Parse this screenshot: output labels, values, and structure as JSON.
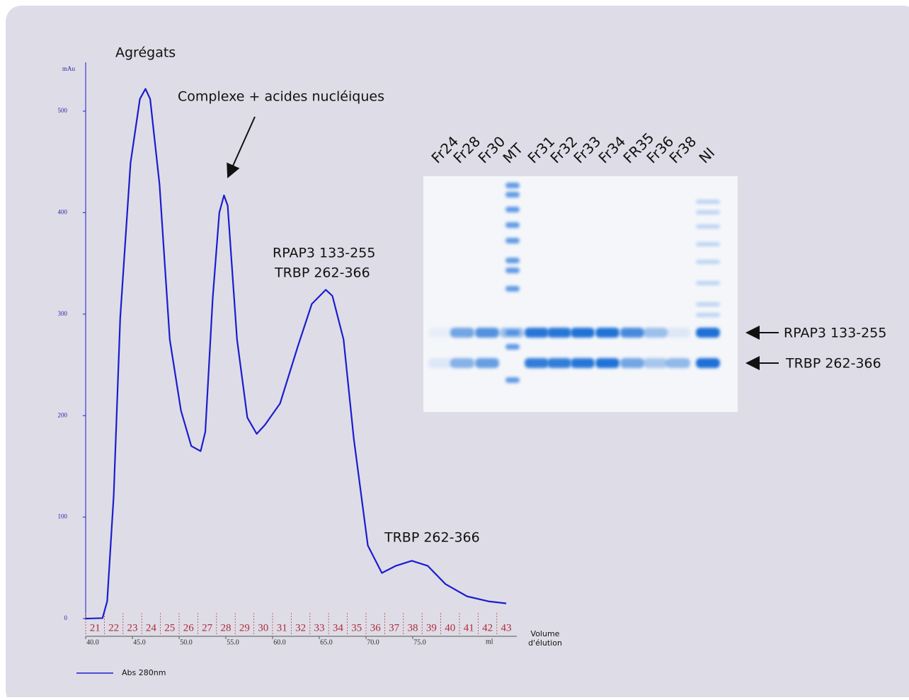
{
  "chart_data": {
    "type": "line",
    "y_label": "mAu",
    "x_label": "Volume d'élution",
    "x_unit": "ml",
    "x": [
      40,
      41.8,
      42.3,
      43,
      43.7,
      44.8,
      45.8,
      46.4,
      46.9,
      47.9,
      49,
      50.2,
      51.3,
      52.3,
      52.8,
      53.6,
      54.3,
      54.8,
      55.2,
      56.2,
      57.3,
      58.3,
      59.2,
      60.8,
      62.7,
      64.2,
      65.7,
      66.4,
      67.6,
      68.7,
      70.2,
      71.7,
      73.2,
      74.9,
      76.6,
      78.5,
      80.8,
      83.1,
      85
    ],
    "series": [
      {
        "name": "Abs 280nm",
        "color": "#1c1ccf",
        "values": [
          0,
          0.5,
          17,
          121,
          296,
          449,
          512,
          522,
          512,
          428,
          275,
          205,
          170,
          165,
          184,
          316,
          400,
          417,
          407,
          275,
          198,
          182,
          191,
          212,
          268,
          310,
          324,
          318,
          275,
          177,
          72,
          45,
          52,
          57,
          52,
          34,
          22,
          17,
          15
        ]
      }
    ],
    "xlim": [
      40,
      85
    ],
    "ylim": [
      0,
      500
    ],
    "xticks": [
      {
        "value": 40,
        "label": "40.0"
      },
      {
        "value": 45,
        "label": "45.0"
      },
      {
        "value": 50,
        "label": "50.0"
      },
      {
        "value": 55,
        "label": "55.0"
      },
      {
        "value": 60,
        "label": "60.0"
      },
      {
        "value": 65,
        "label": "65.0"
      },
      {
        "value": 70,
        "label": "70.0"
      },
      {
        "value": 75,
        "label": "75.0"
      }
    ],
    "yticks": [
      0,
      100,
      200,
      300,
      400,
      500
    ],
    "fractions": [
      21,
      22,
      23,
      24,
      25,
      26,
      27,
      28,
      29,
      30,
      31,
      32,
      33,
      34,
      35,
      36,
      37,
      38,
      39,
      40,
      41,
      42,
      43
    ],
    "annotations": [
      "Agrégats",
      "Complexe + acides nucléiques",
      "RPAP3 133-255",
      "TRBP 262-366",
      "TRBP 262-366"
    ],
    "gel": {
      "lanes": [
        "Fr24",
        "Fr28",
        "Fr30",
        "MT",
        "Fr31",
        "Fr32",
        "Fr33",
        "Fr34",
        "FR35",
        "Fr36",
        "Fr38",
        "NI"
      ],
      "bands": [
        "RPAP3 133-255",
        "TRBP 262-366"
      ]
    }
  }
}
